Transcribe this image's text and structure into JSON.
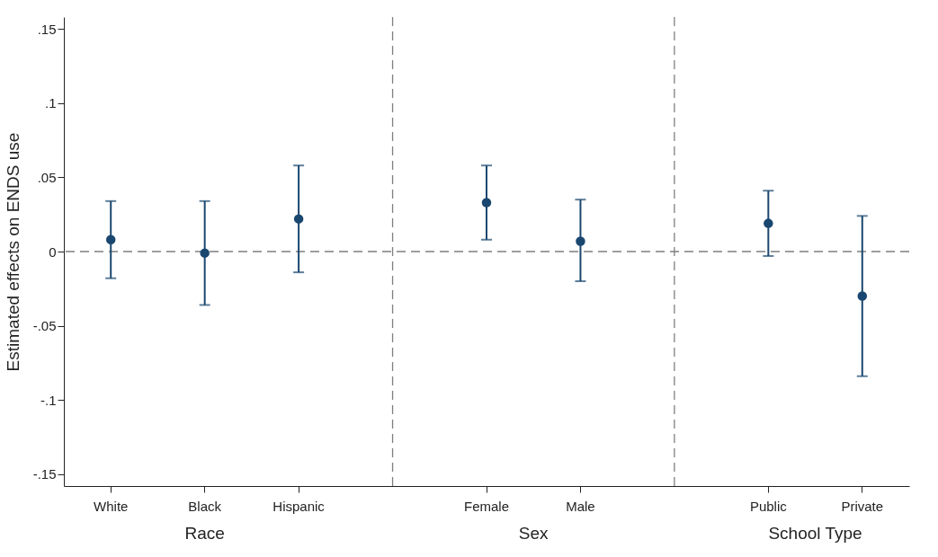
{
  "chart_data": {
    "type": "scatter",
    "ylabel": "Estimated effects on ENDS use",
    "categories": [
      "White",
      "Black",
      "Hispanic",
      null,
      "Female",
      "Male",
      null,
      "Public",
      "Private"
    ],
    "series": [
      {
        "color": "#1a476f",
        "values": [
          0.008,
          -0.001,
          0.022,
          null,
          0.033,
          0.007,
          null,
          0.019,
          -0.03
        ],
        "errors": [
          [
            -0.018,
            0.034
          ],
          [
            -0.036,
            0.034
          ],
          [
            -0.014,
            0.058
          ],
          null,
          [
            0.008,
            0.058
          ],
          [
            -0.02,
            0.035
          ],
          null,
          [
            -0.003,
            0.041
          ],
          [
            -0.084,
            0.024
          ]
        ]
      }
    ],
    "ylim": [
      -0.158,
      0.158
    ],
    "yticks": [
      {
        "value": -0.15,
        "label": "-.15"
      },
      {
        "value": -0.1,
        "label": "-.1"
      },
      {
        "value": -0.05,
        "label": "-.05"
      },
      0,
      {
        "value": 0.05,
        "label": ".05"
      },
      {
        "value": 0.1,
        "label": ".1"
      },
      {
        "value": 0.15,
        "label": ".15"
      }
    ],
    "marker": "circle",
    "ref_lines": [
      {
        "axis": "y",
        "value": 0,
        "line_style": "dashed",
        "color": "#7f7f7f"
      },
      {
        "axis": "x",
        "value": null,
        "line_style": "dashed",
        "color": "#7f7f7f"
      },
      {
        "axis": "x",
        "value": null,
        "line_style": "dashed",
        "color": "#7f7f7f"
      }
    ],
    "annotations": [
      "Race",
      "Sex",
      "School Type"
    ]
  }
}
